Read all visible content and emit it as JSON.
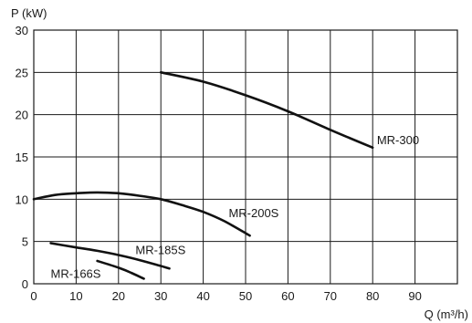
{
  "chart_data": {
    "type": "line",
    "title": "",
    "xlabel": "Q (m³/h)",
    "ylabel": "P (kW)",
    "xlim": [
      0,
      100
    ],
    "ylim": [
      0,
      30
    ],
    "grid": true,
    "xticks": [
      "0",
      "10",
      "20",
      "30",
      "40",
      "50",
      "60",
      "70",
      "80",
      "90"
    ],
    "yticks": [
      "0",
      "5",
      "10",
      "15",
      "20",
      "25",
      "30"
    ],
    "series": [
      {
        "name": "MR-300",
        "x": [
          30,
          40,
          50,
          60,
          70,
          80
        ],
        "y": [
          25.0,
          23.9,
          22.3,
          20.4,
          18.2,
          16.1
        ]
      },
      {
        "name": "MR-200S",
        "x": [
          0,
          5,
          10,
          15,
          20,
          25,
          30,
          35,
          40,
          45,
          51
        ],
        "y": [
          10.0,
          10.5,
          10.7,
          10.8,
          10.7,
          10.4,
          10.0,
          9.3,
          8.5,
          7.4,
          5.7
        ]
      },
      {
        "name": "MR-185S",
        "x": [
          4,
          10,
          15,
          20,
          25,
          30,
          32
        ],
        "y": [
          4.8,
          4.3,
          3.9,
          3.4,
          2.8,
          2.1,
          1.8
        ]
      },
      {
        "name": "MR-166S",
        "x": [
          15,
          20,
          23,
          26
        ],
        "y": [
          2.7,
          1.9,
          1.3,
          0.6
        ]
      }
    ],
    "labels": [
      {
        "series": "MR-300",
        "text": "MR-300",
        "x": 81,
        "y": 16.5
      },
      {
        "series": "MR-200S",
        "text": "MR-200S",
        "x": 46,
        "y": 7.9
      },
      {
        "series": "MR-185S",
        "text": "MR-185S",
        "x": 24,
        "y": 3.5
      },
      {
        "series": "MR-166S",
        "text": "MR-166S",
        "x": 4,
        "y": 0.7
      }
    ]
  }
}
